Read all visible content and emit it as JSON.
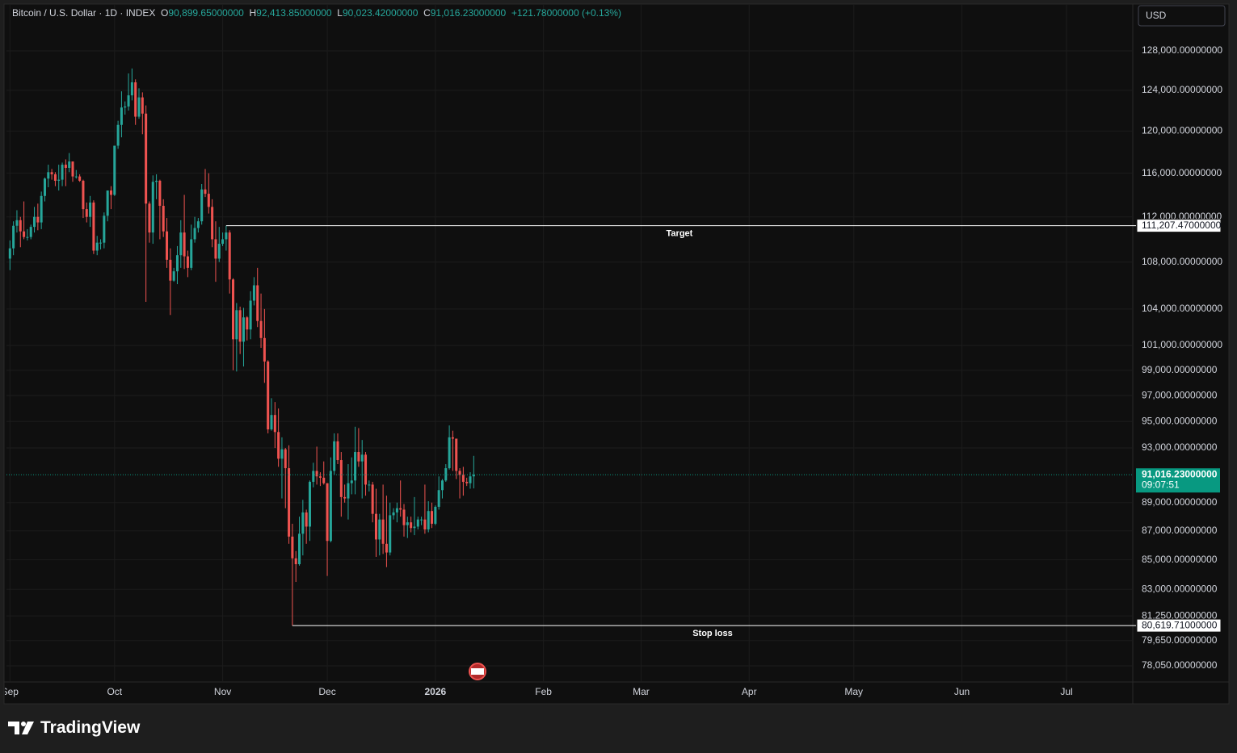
{
  "header": {
    "symbol": "Bitcoin / U.S. Dollar · 1D · INDEX",
    "open_label": "O",
    "open": "90,899.65000000",
    "high_label": "H",
    "high": "92,413.85000000",
    "low_label": "L",
    "low": "90,023.42000000",
    "close_label": "C",
    "close": "91,016.23000000",
    "change": "+121.78000000 (+0.13%)"
  },
  "currency": "USD",
  "brand": "TradingView",
  "chart_data": {
    "type": "candlestick",
    "log": true,
    "grid": true,
    "up_color": "#26a69a",
    "down_color": "#ef5350",
    "x": [
      "2025-09-01",
      "2025-09-02",
      "2025-09-03",
      "2025-09-04",
      "2025-09-05",
      "2025-09-06",
      "2025-09-07",
      "2025-09-08",
      "2025-09-09",
      "2025-09-10",
      "2025-09-11",
      "2025-09-12",
      "2025-09-13",
      "2025-09-14",
      "2025-09-15",
      "2025-09-16",
      "2025-09-17",
      "2025-09-18",
      "2025-09-19",
      "2025-09-20",
      "2025-09-21",
      "2025-09-22",
      "2025-09-23",
      "2025-09-24",
      "2025-09-25",
      "2025-09-26",
      "2025-09-27",
      "2025-09-28",
      "2025-09-29",
      "2025-09-30",
      "2025-10-01",
      "2025-10-02",
      "2025-10-03",
      "2025-10-04",
      "2025-10-05",
      "2025-10-06",
      "2025-10-07",
      "2025-10-08",
      "2025-10-09",
      "2025-10-10",
      "2025-10-11",
      "2025-10-12",
      "2025-10-13",
      "2025-10-14",
      "2025-10-15",
      "2025-10-16",
      "2025-10-17",
      "2025-10-18",
      "2025-10-19",
      "2025-10-20",
      "2025-10-21",
      "2025-10-22",
      "2025-10-23",
      "2025-10-24",
      "2025-10-25",
      "2025-10-26",
      "2025-10-27",
      "2025-10-28",
      "2025-10-29",
      "2025-10-30",
      "2025-10-31",
      "2025-11-01",
      "2025-11-02",
      "2025-11-03",
      "2025-11-04",
      "2025-11-05",
      "2025-11-06",
      "2025-11-07",
      "2025-11-08",
      "2025-11-09",
      "2025-11-10",
      "2025-11-11",
      "2025-11-12",
      "2025-11-13",
      "2025-11-14",
      "2025-11-15",
      "2025-11-16",
      "2025-11-17",
      "2025-11-18",
      "2025-11-19",
      "2025-11-20",
      "2025-11-21",
      "2025-11-22",
      "2025-11-23",
      "2025-11-24",
      "2025-11-25",
      "2025-11-26",
      "2025-11-27",
      "2025-11-28",
      "2025-11-29",
      "2025-11-30",
      "2025-12-01",
      "2025-12-02",
      "2025-12-03",
      "2025-12-04",
      "2025-12-05",
      "2025-12-06",
      "2025-12-07",
      "2025-12-08",
      "2025-12-09",
      "2025-12-10",
      "2025-12-11",
      "2025-12-12",
      "2025-12-13",
      "2025-12-14",
      "2025-12-15",
      "2025-12-16",
      "2025-12-17",
      "2025-12-18",
      "2025-12-19",
      "2025-12-20",
      "2025-12-21",
      "2025-12-22",
      "2025-12-23",
      "2025-12-24",
      "2025-12-25",
      "2025-12-26",
      "2025-12-27",
      "2025-12-28",
      "2025-12-29",
      "2025-12-30",
      "2025-12-31",
      "2026-01-01",
      "2026-01-02",
      "2026-01-03",
      "2026-01-04",
      "2026-01-05",
      "2026-01-06",
      "2026-01-07",
      "2026-01-08",
      "2026-01-09",
      "2026-01-10",
      "2026-01-11",
      "2026-01-12"
    ],
    "open": [
      108300,
      109200,
      111200,
      111700,
      110700,
      110200,
      110200,
      111100,
      112000,
      111500,
      113900,
      115500,
      116100,
      115900,
      115300,
      115400,
      116800,
      116500,
      117100,
      115700,
      115700,
      115300,
      112700,
      112000,
      113300,
      109000,
      109700,
      109700,
      112100,
      114400,
      114000,
      118600,
      120600,
      122300,
      122400,
      123500,
      124800,
      121400,
      123300,
      121700,
      113200,
      110600,
      115200,
      115300,
      113000,
      110700,
      108200,
      106400,
      107200,
      108600,
      110600,
      108500,
      107500,
      110000,
      111000,
      111600,
      114500,
      114100,
      112900,
      110000,
      108300,
      109600,
      110000,
      110600,
      106500,
      101500,
      103900,
      101300,
      103300,
      102300,
      104700,
      106000,
      103000,
      101600,
      99700,
      94400,
      95500,
      94200,
      92200,
      92900,
      91500,
      86600,
      85100,
      84700,
      86800,
      88300,
      87300,
      90500,
      91300,
      90900,
      90800,
      90400,
      86300,
      91300,
      93500,
      92100,
      89400,
      89300,
      90400,
      90600,
      92700,
      92000,
      92500,
      90300,
      90300,
      88200,
      86400,
      87800,
      86100,
      85500,
      88100,
      88300,
      88600,
      88500,
      87400,
      87600,
      87200,
      87300,
      87800,
      87800,
      87100,
      88400,
      87500,
      88700,
      89900,
      90600,
      91500,
      93800,
      93700,
      91300,
      91000,
      90500,
      90400,
      90899.65
    ],
    "high": [
      109900,
      111600,
      112600,
      112000,
      113400,
      110900,
      111300,
      112900,
      113200,
      114300,
      115600,
      116800,
      116400,
      116100,
      116800,
      117000,
      117300,
      117900,
      117100,
      116300,
      115900,
      115400,
      113300,
      113900,
      113500,
      110300,
      110000,
      112400,
      114400,
      114800,
      118600,
      121000,
      123900,
      122900,
      125700,
      126200,
      125100,
      124200,
      123800,
      122500,
      113400,
      115800,
      115900,
      115400,
      113600,
      111900,
      109200,
      107500,
      109400,
      111700,
      114000,
      109000,
      111300,
      112000,
      111900,
      115000,
      116400,
      116000,
      113600,
      111600,
      111100,
      110600,
      111207.47,
      110800,
      106600,
      104500,
      104200,
      104100,
      103400,
      105500,
      106700,
      107500,
      105300,
      104000,
      99800,
      96800,
      96500,
      96000,
      93800,
      93000,
      93200,
      87500,
      85600,
      88000,
      89200,
      88500,
      90600,
      91900,
      93100,
      91200,
      92000,
      90400,
      92300,
      94100,
      94100,
      92700,
      90300,
      91800,
      92300,
      94600,
      94500,
      93600,
      92700,
      90600,
      90500,
      90000,
      88200,
      90300,
      89500,
      89000,
      88600,
      89000,
      90600,
      88900,
      88000,
      88000,
      89400,
      88000,
      88000,
      90300,
      89100,
      89000,
      88800,
      90900,
      90700,
      91800,
      94700,
      94300,
      93700,
      91500,
      91600,
      90800,
      91200,
      92413.85
    ],
    "low": [
      107300,
      108600,
      110600,
      109300,
      110000,
      109900,
      110000,
      110600,
      110800,
      110900,
      113400,
      114700,
      115400,
      114800,
      114400,
      114800,
      114800,
      116100,
      115200,
      115500,
      115200,
      111900,
      111500,
      111100,
      108700,
      108600,
      109100,
      109200,
      111600,
      112700,
      113900,
      118300,
      119400,
      121600,
      122000,
      123000,
      120600,
      121200,
      119700,
      104600,
      109700,
      109600,
      113600,
      110000,
      110200,
      107500,
      103500,
      106300,
      106100,
      107500,
      107400,
      106700,
      107300,
      109700,
      110600,
      111300,
      113800,
      112300,
      109300,
      106300,
      108000,
      109400,
      109000,
      105300,
      99000,
      98900,
      100300,
      99300,
      101400,
      101500,
      104300,
      102500,
      100800,
      98000,
      94100,
      94300,
      93000,
      91600,
      89300,
      88600,
      86100,
      80619.71,
      83500,
      84600,
      85300,
      86100,
      86300,
      90100,
      90300,
      90200,
      90300,
      83900,
      86200,
      91000,
      91800,
      88000,
      89000,
      87800,
      89600,
      89600,
      91600,
      89300,
      89500,
      89800,
      87600,
      85200,
      85300,
      85400,
      84500,
      85300,
      87800,
      87600,
      88000,
      86600,
      86500,
      86900,
      86700,
      87100,
      87400,
      86800,
      86900,
      87200,
      87400,
      88500,
      89300,
      90500,
      91400,
      91300,
      90700,
      89300,
      89500,
      90200,
      90000,
      90023.42
    ],
    "close": [
      109200,
      111200,
      111700,
      110700,
      110200,
      110200,
      111100,
      112000,
      111500,
      113900,
      115500,
      116100,
      115900,
      115300,
      115400,
      116800,
      116500,
      117100,
      115700,
      115700,
      115300,
      112700,
      112000,
      113300,
      109000,
      109700,
      109700,
      112100,
      114400,
      114000,
      118600,
      120600,
      122300,
      122400,
      123500,
      124800,
      121400,
      123300,
      121700,
      113200,
      110600,
      115200,
      115300,
      113000,
      110700,
      108200,
      106400,
      107200,
      108600,
      110600,
      108500,
      107500,
      110000,
      111000,
      111600,
      114500,
      114100,
      112900,
      110000,
      108300,
      109600,
      110000,
      110600,
      106500,
      101500,
      103900,
      101300,
      103300,
      102300,
      104700,
      106000,
      103000,
      101600,
      99700,
      94400,
      95500,
      94200,
      92200,
      92900,
      91500,
      86600,
      85100,
      84700,
      86800,
      88300,
      87300,
      90500,
      91300,
      90900,
      90800,
      90400,
      86300,
      91300,
      93500,
      92100,
      89400,
      89300,
      90400,
      90600,
      92700,
      92000,
      92500,
      90300,
      90300,
      88200,
      86400,
      87800,
      86100,
      85500,
      88100,
      88300,
      88600,
      88500,
      87400,
      87600,
      87200,
      87300,
      87800,
      87800,
      87100,
      88400,
      87500,
      88700,
      89900,
      90600,
      91500,
      93800,
      93700,
      91300,
      91000,
      90500,
      90400,
      90900,
      91016.23
    ],
    "xlim": [
      "2025-08-31",
      "2026-07-20"
    ],
    "xticks": [
      {
        "value": "2025-09-01",
        "label": "Sep"
      },
      {
        "value": "2025-10-01",
        "label": "Oct"
      },
      {
        "value": "2025-11-01",
        "label": "Nov"
      },
      {
        "value": "2025-12-01",
        "label": "Dec"
      },
      {
        "value": "2026-01-01",
        "label": "2026"
      },
      {
        "value": "2026-02-01",
        "label": "Feb"
      },
      {
        "value": "2026-03-01",
        "label": "Mar"
      },
      {
        "value": "2026-04-01",
        "label": "Apr"
      },
      {
        "value": "2026-05-01",
        "label": "May"
      },
      {
        "value": "2026-06-01",
        "label": "Jun"
      },
      {
        "value": "2026-07-01",
        "label": "Jul"
      }
    ],
    "ylim": [
      77043,
      133345
    ],
    "yticks": [
      {
        "value": 128000,
        "label": "128,000.00000000"
      },
      {
        "value": 124000,
        "label": "124,000.00000000"
      },
      {
        "value": 120000,
        "label": "120,000.00000000"
      },
      {
        "value": 116000,
        "label": "116,000.00000000"
      },
      {
        "value": 112000,
        "label": "112,000.00000000"
      },
      {
        "value": 108000,
        "label": "108,000.00000000"
      },
      {
        "value": 104000,
        "label": "104,000.00000000"
      },
      {
        "value": 101000,
        "label": "101,000.00000000"
      },
      {
        "value": 99000,
        "label": "99,000.00000000"
      },
      {
        "value": 97000,
        "label": "97,000.00000000"
      },
      {
        "value": 95000,
        "label": "95,000.00000000"
      },
      {
        "value": 93000,
        "label": "93,000.00000000"
      },
      {
        "value": 89000,
        "label": "89,000.00000000"
      },
      {
        "value": 87000,
        "label": "87,000.00000000"
      },
      {
        "value": 85000,
        "label": "85,000.00000000"
      },
      {
        "value": 83000,
        "label": "83,000.00000000"
      },
      {
        "value": 81250,
        "label": "81,250.00000000"
      },
      {
        "value": 79650,
        "label": "79,650.00000000"
      },
      {
        "value": 78050,
        "label": "78,050.00000000"
      }
    ],
    "levels": [
      {
        "name": "Target",
        "value": 111207.47,
        "label": "111,207.47000000",
        "start": "2025-11-02"
      },
      {
        "name": "Stop loss",
        "value": 80619.71,
        "label": "80,619.71000000",
        "start": "2025-11-21"
      }
    ],
    "last_price": {
      "value": 91016.23,
      "label": "91,016.23000000",
      "countdown": "09:07:51",
      "color": "#089981"
    }
  }
}
